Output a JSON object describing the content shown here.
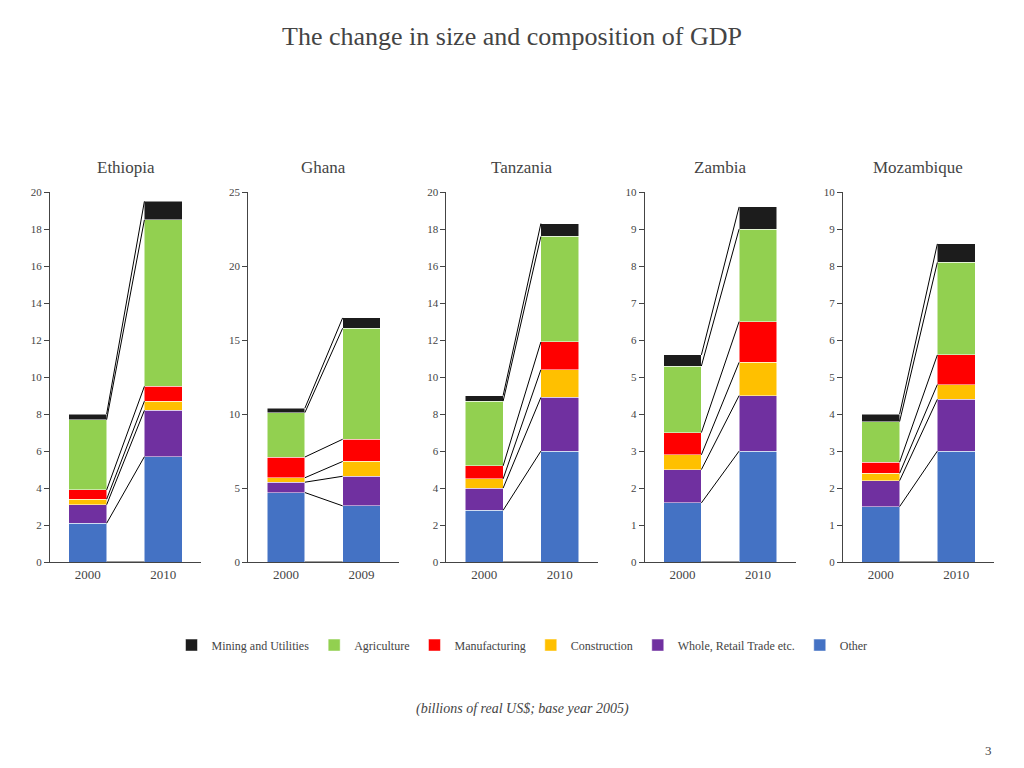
{
  "title": "The change in size and composition of GDP",
  "subtitle": "(billions of real US$; base year 2005)",
  "annotations": [
    "3"
  ],
  "legend": "bottom",
  "chart_data": [
    {
      "type": "bar",
      "title": "Ethiopia",
      "categories": [
        "2000",
        "2010"
      ],
      "stacked": true,
      "grid": false,
      "ylim": [
        0,
        20
      ],
      "yticks": [
        0,
        2,
        4,
        6,
        8,
        10,
        12,
        14,
        16,
        18,
        20
      ],
      "series": [
        {
          "name": "Other",
          "color": "#4472C4",
          "values": [
            2.1,
            5.7
          ]
        },
        {
          "name": "Whole, Retail Trade etc.",
          "color": "#7030A0",
          "values": [
            1.0,
            2.5
          ]
        },
        {
          "name": "Construction",
          "color": "#FFC000",
          "values": [
            0.3,
            0.5
          ]
        },
        {
          "name": "Manufacturing",
          "color": "#FF0000",
          "values": [
            0.5,
            0.8
          ]
        },
        {
          "name": "Agriculture",
          "color": "#92D050",
          "values": [
            3.8,
            9.0
          ]
        },
        {
          "name": "Mining and Utilities",
          "color": "#1C1C1C",
          "values": [
            0.3,
            1.0
          ]
        }
      ]
    },
    {
      "type": "bar",
      "title": "Ghana",
      "categories": [
        "2000",
        "2009"
      ],
      "stacked": true,
      "grid": false,
      "ylim": [
        0,
        25
      ],
      "yticks": [
        0,
        5,
        10,
        15,
        20,
        25
      ],
      "series": [
        {
          "name": "Other",
          "color": "#4472C4",
          "values": [
            4.7,
            3.8
          ]
        },
        {
          "name": "Whole, Retail Trade etc.",
          "color": "#7030A0",
          "values": [
            0.7,
            2.0
          ]
        },
        {
          "name": "Construction",
          "color": "#FFC000",
          "values": [
            0.3,
            1.0
          ]
        },
        {
          "name": "Manufacturing",
          "color": "#FF0000",
          "values": [
            1.4,
            1.5
          ]
        },
        {
          "name": "Agriculture",
          "color": "#92D050",
          "values": [
            3.0,
            7.5
          ]
        },
        {
          "name": "Mining and Utilities",
          "color": "#1C1C1C",
          "values": [
            0.3,
            0.7
          ]
        }
      ]
    },
    {
      "type": "bar",
      "title": "Tanzania",
      "categories": [
        "2000",
        "2010"
      ],
      "stacked": true,
      "grid": false,
      "ylim": [
        0,
        20
      ],
      "yticks": [
        0,
        2,
        4,
        6,
        8,
        10,
        12,
        14,
        16,
        18,
        20
      ],
      "series": [
        {
          "name": "Other",
          "color": "#4472C4",
          "values": [
            2.8,
            6.0
          ]
        },
        {
          "name": "Whole, Retail Trade etc.",
          "color": "#7030A0",
          "values": [
            1.2,
            2.9
          ]
        },
        {
          "name": "Construction",
          "color": "#FFC000",
          "values": [
            0.5,
            1.5
          ]
        },
        {
          "name": "Manufacturing",
          "color": "#FF0000",
          "values": [
            0.7,
            1.5
          ]
        },
        {
          "name": "Agriculture",
          "color": "#92D050",
          "values": [
            3.5,
            5.7
          ]
        },
        {
          "name": "Mining and Utilities",
          "color": "#1C1C1C",
          "values": [
            0.3,
            0.7
          ]
        }
      ]
    },
    {
      "type": "bar",
      "title": "Zambia",
      "categories": [
        "2000",
        "2010"
      ],
      "stacked": true,
      "grid": false,
      "ylim": [
        0,
        10
      ],
      "yticks": [
        0,
        1,
        2,
        3,
        4,
        5,
        6,
        7,
        8,
        9,
        10
      ],
      "series": [
        {
          "name": "Other",
          "color": "#4472C4",
          "values": [
            1.6,
            3.0
          ]
        },
        {
          "name": "Whole, Retail Trade etc.",
          "color": "#7030A0",
          "values": [
            0.9,
            1.5
          ]
        },
        {
          "name": "Construction",
          "color": "#FFC000",
          "values": [
            0.4,
            0.9
          ]
        },
        {
          "name": "Manufacturing",
          "color": "#FF0000",
          "values": [
            0.6,
            1.1
          ]
        },
        {
          "name": "Agriculture",
          "color": "#92D050",
          "values": [
            1.8,
            2.5
          ]
        },
        {
          "name": "Mining and Utilities",
          "color": "#1C1C1C",
          "values": [
            0.3,
            0.6
          ]
        }
      ]
    },
    {
      "type": "bar",
      "title": "Mozambique",
      "categories": [
        "2000",
        "2010"
      ],
      "stacked": true,
      "grid": false,
      "ylim": [
        0,
        10
      ],
      "yticks": [
        0,
        1,
        2,
        3,
        4,
        5,
        6,
        7,
        8,
        9,
        10
      ],
      "series": [
        {
          "name": "Other",
          "color": "#4472C4",
          "values": [
            1.5,
            3.0
          ]
        },
        {
          "name": "Whole, Retail Trade etc.",
          "color": "#7030A0",
          "values": [
            0.7,
            1.4
          ]
        },
        {
          "name": "Construction",
          "color": "#FFC000",
          "values": [
            0.2,
            0.4
          ]
        },
        {
          "name": "Manufacturing",
          "color": "#FF0000",
          "values": [
            0.3,
            0.8
          ]
        },
        {
          "name": "Agriculture",
          "color": "#92D050",
          "values": [
            1.1,
            2.5
          ]
        },
        {
          "name": "Mining and Utilities",
          "color": "#1C1C1C",
          "values": [
            0.2,
            0.5
          ]
        }
      ]
    }
  ]
}
